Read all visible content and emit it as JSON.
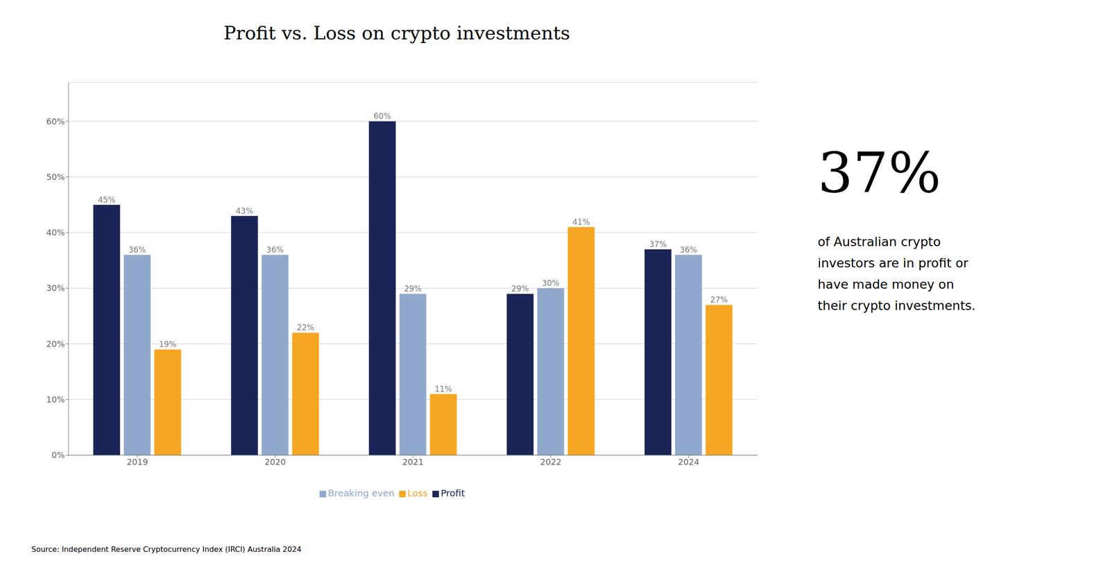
{
  "chart_data": {
    "type": "bar",
    "title": "Profit vs. Loss on crypto investments",
    "categories": [
      "2019",
      "2020",
      "2021",
      "2022",
      "2024"
    ],
    "series": [
      {
        "name": "Profit",
        "color": "#1a2456",
        "values": [
          45,
          43,
          60,
          29,
          37
        ],
        "value_labels": [
          "45%",
          "43%",
          "60%",
          "29%",
          "37%"
        ]
      },
      {
        "name": "Breaking even",
        "color": "#8fa8cc",
        "values": [
          36,
          36,
          29,
          30,
          36
        ],
        "value_labels": [
          "36%",
          "36%",
          "29%",
          "30%",
          "36%"
        ]
      },
      {
        "name": "Loss",
        "color": "#f5a623",
        "values": [
          19,
          22,
          11,
          41,
          27
        ],
        "value_labels": [
          "19%",
          "22%",
          "11%",
          "41%",
          "27%"
        ]
      }
    ],
    "ylim": [
      0,
      67
    ],
    "yticks": [
      {
        "value": 0,
        "label": "0%"
      },
      {
        "value": 10,
        "label": "10%"
      },
      {
        "value": 20,
        "label": "20%"
      },
      {
        "value": 30,
        "label": "30%"
      },
      {
        "value": 40,
        "label": "40%"
      },
      {
        "value": 50,
        "label": "50%"
      },
      {
        "value": 60,
        "label": "60%"
      }
    ],
    "grid": true,
    "legend": "bottom",
    "data_labels": true,
    "source": "Source: Independent Reserve Cryptocurrency Index (IRCI) Australia 2024",
    "annotations": [
      "37%",
      "of Australian crypto\ninvestors are in profit or\nhave made money on\ntheir crypto investments."
    ]
  }
}
